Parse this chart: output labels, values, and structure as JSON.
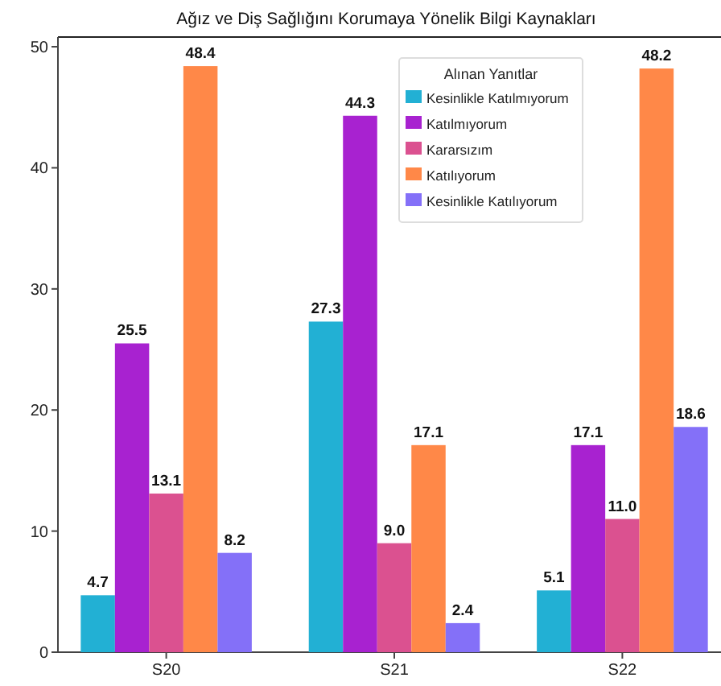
{
  "chart_data": {
    "type": "bar",
    "title": "Ağız ve Diş Sağlığını Korumaya Yönelik Bilgi Kaynakları",
    "categories": [
      "S20",
      "S21",
      "S22"
    ],
    "series": [
      {
        "name": "Kesinlikle Katılmıyorum",
        "color": "#22b0d4",
        "values": [
          4.7,
          27.3,
          5.1
        ],
        "value_labels": [
          "4.7",
          "27.3",
          "5.1"
        ]
      },
      {
        "name": "Katılmıyorum",
        "color": "#a822d0",
        "values": [
          25.5,
          44.3,
          17.1
        ],
        "value_labels": [
          "25.5",
          "44.3",
          "17.1"
        ]
      },
      {
        "name": "Kararsızım",
        "color": "#db5190",
        "values": [
          13.1,
          9,
          11
        ],
        "value_labels": [
          "13.1",
          "9.0",
          "11.0"
        ]
      },
      {
        "name": "Katılıyorum",
        "color": "#ff8848",
        "values": [
          48.4,
          17.1,
          48.2
        ],
        "value_labels": [
          "48.4",
          "17.1",
          "48.2"
        ]
      },
      {
        "name": "Kesinlikle Katılıyorum",
        "color": "#8470f8",
        "values": [
          8.2,
          2.4,
          18.6
        ],
        "value_labels": [
          "8.2",
          "2.4",
          "18.6"
        ]
      }
    ],
    "legend_title": "Alınan Yanıtlar",
    "legend": "top right",
    "ylim": [
      0,
      50.8
    ],
    "yticks": [
      0,
      10,
      20,
      30,
      40,
      50
    ]
  }
}
